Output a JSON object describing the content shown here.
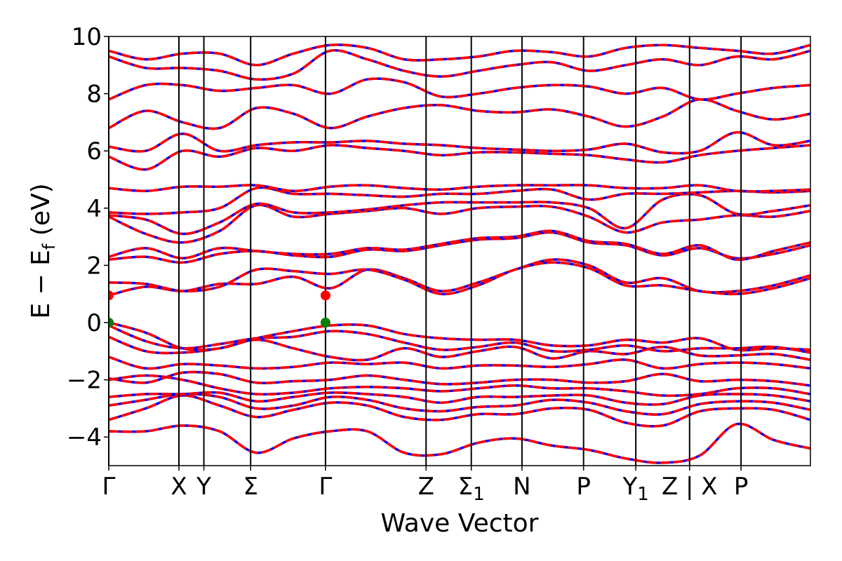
{
  "chart_data": {
    "type": "line",
    "title": "",
    "xlabel": "Wave Vector",
    "ylabel_parts": {
      "main": "E − E",
      "sub": "f",
      "unit": " (eV)"
    },
    "ylim": [
      -5,
      10
    ],
    "yticks": [
      {
        "value": -4,
        "label": "−4"
      },
      {
        "value": -2,
        "label": "−2"
      },
      {
        "value": 0,
        "label": "0"
      },
      {
        "value": 2,
        "label": "2"
      },
      {
        "value": 4,
        "label": "4"
      },
      {
        "value": 6,
        "label": "6"
      },
      {
        "value": 8,
        "label": "8"
      },
      {
        "value": 10,
        "label": "10"
      }
    ],
    "xlim": [
      0,
      9.0
    ],
    "kpoints": [
      {
        "x": 0.0,
        "label": "Γ",
        "sub": ""
      },
      {
        "x": 0.9,
        "label": "X",
        "sub": ""
      },
      {
        "x": 1.22,
        "label": "Y",
        "sub": ""
      },
      {
        "x": 1.82,
        "label": "Σ",
        "sub": ""
      },
      {
        "x": 2.78,
        "label": "Γ",
        "sub": ""
      },
      {
        "x": 4.07,
        "label": "Z",
        "sub": ""
      },
      {
        "x": 4.65,
        "label": "Σ",
        "sub": "1"
      },
      {
        "x": 5.3,
        "label": "N",
        "sub": ""
      },
      {
        "x": 6.09,
        "label": "P",
        "sub": ""
      },
      {
        "x": 6.76,
        "label": "Y",
        "sub": "1"
      },
      {
        "x": 7.45,
        "label": "Z | X",
        "sub": ""
      },
      {
        "x": 8.11,
        "label": "P",
        "sub": ""
      }
    ],
    "line_colors": {
      "primary": "#ff0000",
      "dashed": "#0000ff",
      "cbm_marker": "#ff0000",
      "vbm_marker": "#008000"
    },
    "extrema": [
      {
        "type": "cbm",
        "x": 0.0,
        "y": 0.95
      },
      {
        "type": "cbm",
        "x": 2.78,
        "y": 0.95
      },
      {
        "type": "vbm",
        "x": 0.0,
        "y": 0.0
      },
      {
        "type": "vbm",
        "x": 2.78,
        "y": 0.0
      }
    ],
    "bands": [
      [
        -3.8,
        -3.8,
        -3.6,
        -3.8,
        -4.55,
        -4.05,
        -3.8,
        -3.8,
        -4.55,
        -4.6,
        -4.2,
        -4.05,
        -4.3,
        -4.45,
        -4.75,
        -4.9,
        -4.65,
        -3.55,
        -4.1,
        -4.4
      ],
      [
        -3.4,
        -3.0,
        -2.55,
        -2.9,
        -3.3,
        -3.05,
        -2.8,
        -2.9,
        -3.3,
        -3.4,
        -3.2,
        -3.2,
        -3.0,
        -3.05,
        -3.5,
        -3.6,
        -3.1,
        -3.0,
        -3.05,
        -3.4
      ],
      [
        -2.9,
        -2.7,
        -2.5,
        -2.6,
        -3.0,
        -2.9,
        -2.6,
        -2.7,
        -3.0,
        -3.1,
        -2.95,
        -2.9,
        -2.7,
        -2.8,
        -3.1,
        -3.2,
        -2.85,
        -2.75,
        -2.8,
        -3.05
      ],
      [
        -2.6,
        -2.5,
        -2.5,
        -2.45,
        -2.75,
        -2.6,
        -2.45,
        -2.5,
        -2.6,
        -2.8,
        -2.6,
        -2.6,
        -2.55,
        -2.55,
        -2.8,
        -2.85,
        -2.55,
        -2.5,
        -2.55,
        -2.75
      ],
      [
        -2.0,
        -1.85,
        -2.0,
        -2.3,
        -2.5,
        -2.45,
        -2.3,
        -2.25,
        -2.3,
        -2.4,
        -2.3,
        -2.2,
        -2.3,
        -2.3,
        -2.4,
        -2.55,
        -2.5,
        -2.3,
        -2.3,
        -2.5
      ],
      [
        -1.95,
        -2.1,
        -1.75,
        -1.8,
        -2.1,
        -2.05,
        -2.0,
        -1.85,
        -2.0,
        -2.15,
        -2.1,
        -2.0,
        -2.0,
        -2.1,
        -2.05,
        -1.8,
        -2.05,
        -2.0,
        -2.05,
        -2.2
      ],
      [
        -1.2,
        -1.6,
        -1.45,
        -1.5,
        -1.6,
        -1.55,
        -1.4,
        -1.45,
        -1.4,
        -1.6,
        -1.5,
        -1.5,
        -1.55,
        -1.45,
        -1.3,
        -1.6,
        -1.45,
        -1.4,
        -1.45,
        -1.6
      ],
      [
        -0.5,
        -1.0,
        -1.05,
        -0.9,
        -0.6,
        -0.9,
        -1.2,
        -1.3,
        -0.9,
        -1.2,
        -1.0,
        -0.85,
        -1.25,
        -1.0,
        -1.1,
        -0.85,
        -1.15,
        -1.15,
        -1.1,
        -1.3
      ],
      [
        -0.1,
        -0.65,
        -0.9,
        -0.75,
        -0.55,
        -0.5,
        -0.3,
        -0.4,
        -0.7,
        -0.95,
        -0.85,
        -0.7,
        -1.0,
        -0.95,
        -0.8,
        -1.0,
        -0.9,
        -0.9,
        -0.85,
        -1.05
      ],
      [
        0.0,
        -0.35,
        -0.9,
        -0.9,
        -0.55,
        -0.3,
        -0.1,
        -0.1,
        -0.4,
        -0.55,
        -0.6,
        -0.6,
        -0.8,
        -0.8,
        -0.6,
        -0.7,
        -0.55,
        -0.95,
        -0.9,
        -0.95
      ],
      [
        0.95,
        1.25,
        1.1,
        1.35,
        1.35,
        1.6,
        1.2,
        1.85,
        1.55,
        1.1,
        1.4,
        1.85,
        2.2,
        2.0,
        1.4,
        1.55,
        1.1,
        1.1,
        1.3,
        1.65
      ],
      [
        1.4,
        1.35,
        1.1,
        1.25,
        1.85,
        1.8,
        1.7,
        1.85,
        1.5,
        1.0,
        1.3,
        1.85,
        2.1,
        1.9,
        1.3,
        1.3,
        1.1,
        1.0,
        1.2,
        1.55
      ],
      [
        2.2,
        2.3,
        2.1,
        2.4,
        2.5,
        2.35,
        2.3,
        2.55,
        2.5,
        2.7,
        2.9,
        2.95,
        3.15,
        2.8,
        2.7,
        2.35,
        2.6,
        2.25,
        2.4,
        2.7
      ],
      [
        2.3,
        2.6,
        2.25,
        2.6,
        2.5,
        2.4,
        2.4,
        2.6,
        2.55,
        2.75,
        2.95,
        3.0,
        3.2,
        2.85,
        2.75,
        2.4,
        2.7,
        2.2,
        2.5,
        2.8
      ],
      [
        3.7,
        3.1,
        2.8,
        3.2,
        4.1,
        3.7,
        3.8,
        3.9,
        4.0,
        3.8,
        4.0,
        4.05,
        4.05,
        3.7,
        3.15,
        3.5,
        3.6,
        3.75,
        3.7,
        3.9
      ],
      [
        3.75,
        3.6,
        3.1,
        3.5,
        4.15,
        3.85,
        3.85,
        3.95,
        4.1,
        4.2,
        4.2,
        4.2,
        4.2,
        4.0,
        3.3,
        4.3,
        4.45,
        3.8,
        3.9,
        4.1
      ],
      [
        3.85,
        3.8,
        3.85,
        4.0,
        4.7,
        4.5,
        4.5,
        4.45,
        4.4,
        4.5,
        4.5,
        4.6,
        4.65,
        4.3,
        4.5,
        4.5,
        4.55,
        4.6,
        4.55,
        4.6
      ],
      [
        4.7,
        4.6,
        4.75,
        4.75,
        4.8,
        4.6,
        4.75,
        4.8,
        4.7,
        4.65,
        4.75,
        4.8,
        4.8,
        4.8,
        4.7,
        4.7,
        4.8,
        4.6,
        4.6,
        4.65
      ],
      [
        5.8,
        5.35,
        6.0,
        5.8,
        6.1,
        6.0,
        6.2,
        6.1,
        6.0,
        5.85,
        5.95,
        5.95,
        5.9,
        5.85,
        5.7,
        5.6,
        5.85,
        6.0,
        6.1,
        6.2
      ],
      [
        6.15,
        6.0,
        6.6,
        6.0,
        6.2,
        6.3,
        6.3,
        6.35,
        6.25,
        6.2,
        6.1,
        6.05,
        6.0,
        6.05,
        6.25,
        5.95,
        6.0,
        6.65,
        6.2,
        6.35
      ],
      [
        6.8,
        7.4,
        7.0,
        6.8,
        7.5,
        7.3,
        6.8,
        7.2,
        7.5,
        7.6,
        7.4,
        7.35,
        7.45,
        7.2,
        6.85,
        7.2,
        7.8,
        7.4,
        7.1,
        7.3
      ],
      [
        7.8,
        8.3,
        8.3,
        8.1,
        8.2,
        8.3,
        8.0,
        8.5,
        8.4,
        7.9,
        8.0,
        8.2,
        8.3,
        8.25,
        8.0,
        8.2,
        7.8,
        8.0,
        8.2,
        8.3
      ],
      [
        9.3,
        8.9,
        8.9,
        8.8,
        8.5,
        8.7,
        9.5,
        9.2,
        8.8,
        8.6,
        8.8,
        9.0,
        9.1,
        8.8,
        9.0,
        9.2,
        9.0,
        9.3,
        9.2,
        9.5
      ],
      [
        9.5,
        9.2,
        9.4,
        9.4,
        9.0,
        9.4,
        9.7,
        9.6,
        9.2,
        9.2,
        9.3,
        9.5,
        9.45,
        9.3,
        9.6,
        9.7,
        9.6,
        9.5,
        9.4,
        9.7
      ]
    ]
  }
}
